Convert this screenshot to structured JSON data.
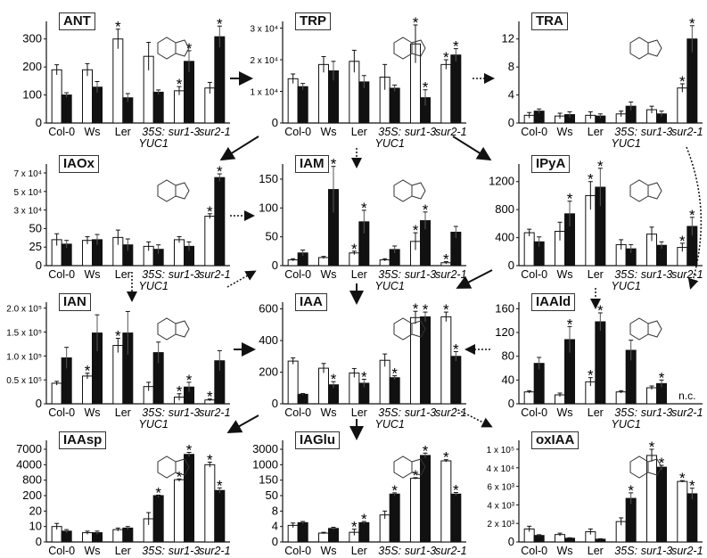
{
  "chart_data": [
    {
      "id": "ANT",
      "title": "ANT",
      "type": "bar",
      "categories": [
        "Col-0",
        "Ws",
        "Ler",
        "35S:",
        "sur1-3",
        "sur2-1"
      ],
      "category_sublabels": [
        "",
        "",
        "",
        "YUC1",
        "",
        ""
      ],
      "ticks": [
        0,
        100,
        200,
        300
      ],
      "tick_labels": [
        "0",
        "100",
        "200",
        "300"
      ],
      "ylim": [
        0,
        350
      ],
      "broken": false,
      "series": [
        {
          "color": "#ffffff",
          "values": [
            190,
            190,
            300,
            238,
            115,
            125
          ],
          "errors": [
            18,
            22,
            35,
            50,
            15,
            20
          ],
          "significant": [
            0,
            0,
            1,
            0,
            1,
            0
          ]
        },
        {
          "color": "#111111",
          "values": [
            100,
            128,
            90,
            110,
            220,
            308
          ],
          "errors": [
            8,
            20,
            15,
            8,
            38,
            38
          ],
          "significant": [
            0,
            0,
            0,
            0,
            1,
            1
          ]
        }
      ]
    },
    {
      "id": "TRP",
      "title": "TRP",
      "type": "bar",
      "categories": [
        "Col-0",
        "Ws",
        "Ler",
        "35S:",
        "sur1-3",
        "sur2-1"
      ],
      "category_sublabels": [
        "",
        "",
        "",
        "YUC1",
        "",
        ""
      ],
      "ticks": [
        0,
        10000,
        20000,
        30000
      ],
      "tick_labels": [
        "0",
        "1 x 10⁴",
        "2 x 10⁴",
        "3 x 10⁴"
      ],
      "ylim": [
        0,
        31000
      ],
      "broken": false,
      "series": [
        {
          "color": "#ffffff",
          "values": [
            14000,
            18500,
            19500,
            14500,
            25000,
            18500
          ],
          "errors": [
            1500,
            2500,
            3500,
            4000,
            6000,
            1500
          ],
          "significant": [
            0,
            0,
            0,
            0,
            1,
            1
          ]
        },
        {
          "color": "#111111",
          "values": [
            11500,
            16500,
            13000,
            11000,
            8000,
            21500
          ],
          "errors": [
            1000,
            3000,
            2000,
            1000,
            2500,
            2000
          ],
          "significant": [
            0,
            0,
            0,
            0,
            1,
            1
          ]
        }
      ]
    },
    {
      "id": "TRA",
      "title": "TRA",
      "type": "bar",
      "categories": [
        "Col-0",
        "Ws",
        "Ler",
        "35S:",
        "sur1-3",
        "sur2-1"
      ],
      "category_sublabels": [
        "",
        "",
        "",
        "YUC1",
        "",
        ""
      ],
      "ticks": [
        0,
        4,
        8,
        12
      ],
      "tick_labels": [
        "0",
        "4",
        "8",
        "12"
      ],
      "ylim": [
        0,
        14
      ],
      "broken": false,
      "series": [
        {
          "color": "#ffffff",
          "values": [
            1.1,
            1.0,
            1.1,
            1.3,
            1.9,
            5.0
          ],
          "errors": [
            0.4,
            0.4,
            0.5,
            0.4,
            0.5,
            0.6
          ],
          "significant": [
            0,
            0,
            0,
            0,
            0,
            1
          ]
        },
        {
          "color": "#111111",
          "values": [
            1.7,
            1.2,
            1.0,
            2.4,
            1.3,
            12
          ],
          "errors": [
            0.3,
            0.4,
            0.3,
            0.6,
            0.4,
            1.9
          ],
          "significant": [
            0,
            0,
            0,
            0,
            0,
            1
          ]
        }
      ]
    },
    {
      "id": "IAOx",
      "title": "IAOx",
      "type": "bar",
      "categories": [
        "Col-0",
        "Ws",
        "Ler",
        "35S:",
        "sur1-3",
        "sur2-1"
      ],
      "category_sublabels": [
        "",
        "",
        "",
        "YUC1",
        "",
        ""
      ],
      "ticks": [
        0,
        25,
        50,
        30000,
        50000,
        70000
      ],
      "tick_labels": [
        "0",
        "25",
        "50",
        "3 x 10⁴",
        "5 x 10⁴",
        "7 x 10⁴"
      ],
      "broken": true,
      "series": [
        {
          "color": "#ffffff",
          "values": [
            35,
            34,
            38,
            26,
            35,
            20000
          ],
          "errors": [
            8,
            5,
            10,
            6,
            4,
            4000
          ],
          "significant": [
            0,
            0,
            0,
            0,
            0,
            1
          ]
        },
        {
          "color": "#111111",
          "values": [
            29,
            35,
            28,
            22,
            26,
            65000
          ],
          "errors": [
            5,
            7,
            8,
            6,
            6,
            4000
          ],
          "significant": [
            0,
            0,
            0,
            0,
            0,
            1
          ]
        }
      ]
    },
    {
      "id": "IAM",
      "title": "IAM",
      "type": "bar",
      "categories": [
        "Col-0",
        "Ws",
        "Ler",
        "35S:",
        "sur1-3",
        "sur2-1"
      ],
      "category_sublabels": [
        "",
        "",
        "",
        "YUC1",
        "",
        ""
      ],
      "ticks": [
        0,
        50,
        100,
        150
      ],
      "tick_labels": [
        "0",
        "50",
        "100",
        "150"
      ],
      "ylim": [
        0,
        170
      ],
      "broken": false,
      "series": [
        {
          "color": "#ffffff",
          "values": [
            10,
            14,
            22,
            10,
            42,
            5
          ],
          "errors": [
            2,
            2,
            3,
            2,
            15,
            2
          ],
          "significant": [
            0,
            0,
            1,
            0,
            1,
            1
          ]
        },
        {
          "color": "#111111",
          "values": [
            22,
            132,
            76,
            28,
            78,
            58
          ],
          "errors": [
            5,
            40,
            20,
            6,
            15,
            10
          ],
          "significant": [
            0,
            1,
            1,
            0,
            1,
            0
          ]
        }
      ]
    },
    {
      "id": "IPyA",
      "title": "IPyA",
      "type": "bar",
      "categories": [
        "Col-0",
        "Ws",
        "Ler",
        "35S:",
        "sur1-3",
        "sur2-1"
      ],
      "category_sublabels": [
        "",
        "",
        "",
        "YUC1",
        "",
        ""
      ],
      "ticks": [
        0,
        400,
        800,
        1200
      ],
      "tick_labels": [
        "0",
        "400",
        "800",
        "1200"
      ],
      "ylim": [
        0,
        1400
      ],
      "broken": false,
      "series": [
        {
          "color": "#ffffff",
          "values": [
            470,
            490,
            1000,
            300,
            450,
            260
          ],
          "errors": [
            50,
            130,
            200,
            70,
            100,
            60
          ],
          "significant": [
            0,
            0,
            1,
            0,
            0,
            1
          ]
        },
        {
          "color": "#111111",
          "values": [
            340,
            740,
            1120,
            240,
            290,
            560
          ],
          "errors": [
            70,
            180,
            270,
            60,
            50,
            130
          ],
          "significant": [
            0,
            1,
            1,
            0,
            0,
            1
          ]
        }
      ]
    },
    {
      "id": "IAN",
      "title": "IAN",
      "type": "bar",
      "categories": [
        "Col-0",
        "Ws",
        "Ler",
        "35S:",
        "sur1-3",
        "sur2-1"
      ],
      "category_sublabels": [
        "",
        "",
        "",
        "YUC1",
        "",
        ""
      ],
      "ticks": [
        0,
        50000,
        100000,
        150000,
        200000
      ],
      "tick_labels": [
        "0",
        "0.5 x 10⁵",
        "1.0 x 10⁵",
        "1.5 x 10⁵",
        "2.0 x 10⁵"
      ],
      "ylim": [
        0,
        205000
      ],
      "broken": false,
      "series": [
        {
          "color": "#ffffff",
          "values": [
            43000,
            58000,
            122000,
            36000,
            14000,
            8000
          ],
          "errors": [
            4000,
            6000,
            15000,
            9000,
            7000,
            2000
          ],
          "significant": [
            0,
            1,
            1,
            0,
            1,
            1
          ]
        },
        {
          "color": "#111111",
          "values": [
            96000,
            148000,
            148000,
            107000,
            35000,
            90000
          ],
          "errors": [
            22000,
            38000,
            45000,
            22000,
            10000,
            21000
          ],
          "significant": [
            0,
            0,
            0,
            0,
            1,
            0
          ]
        }
      ]
    },
    {
      "id": "IAA",
      "title": "IAA",
      "type": "bar",
      "categories": [
        "Col-0",
        "Ws",
        "Ler",
        "35S:",
        "sur1-3",
        "sur2-1"
      ],
      "category_sublabels": [
        "",
        "",
        "",
        "YUC1",
        "",
        ""
      ],
      "ticks": [
        0,
        200,
        400,
        600
      ],
      "tick_labels": [
        "0",
        "200",
        "400",
        "600"
      ],
      "ylim": [
        0,
        620
      ],
      "broken": false,
      "series": [
        {
          "color": "#ffffff",
          "values": [
            270,
            225,
            195,
            275,
            545,
            550
          ],
          "errors": [
            20,
            30,
            28,
            40,
            40,
            30
          ],
          "significant": [
            0,
            0,
            0,
            0,
            1,
            1
          ]
        },
        {
          "color": "#111111",
          "values": [
            60,
            120,
            130,
            165,
            550,
            300
          ],
          "errors": [
            5,
            20,
            25,
            12,
            30,
            30
          ],
          "significant": [
            0,
            1,
            1,
            1,
            1,
            1
          ]
        }
      ]
    },
    {
      "id": "IAAld",
      "title": "IAAld",
      "type": "bar",
      "categories": [
        "Col-0",
        "Ws",
        "Ler",
        "35S:",
        "sur1-3",
        "sur2-1"
      ],
      "category_sublabels": [
        "",
        "",
        "",
        "YUC1",
        "",
        ""
      ],
      "ticks": [
        0,
        40,
        80,
        120,
        160
      ],
      "tick_labels": [
        "0",
        "40",
        "80",
        "120",
        "160"
      ],
      "ylim": [
        0,
        165
      ],
      "broken": false,
      "annotation": "n.c.",
      "series": [
        {
          "color": "#ffffff",
          "values": [
            20,
            15,
            37,
            20,
            27,
            null
          ],
          "errors": [
            2,
            3,
            7,
            2,
            3,
            0
          ],
          "significant": [
            0,
            0,
            1,
            0,
            0,
            0
          ]
        },
        {
          "color": "#111111",
          "values": [
            68,
            108,
            138,
            90,
            34,
            null
          ],
          "errors": [
            10,
            22,
            15,
            17,
            6,
            0
          ],
          "significant": [
            0,
            1,
            1,
            0,
            1,
            0
          ]
        }
      ]
    },
    {
      "id": "IAAsp",
      "title": "IAAsp",
      "type": "bar",
      "categories": [
        "Col-0",
        "Ws",
        "Ler",
        "35S:",
        "sur1-3",
        "sur2-1"
      ],
      "category_sublabels": [
        "",
        "",
        "",
        "YUC1",
        "",
        ""
      ],
      "ticks": [
        0,
        10,
        20,
        200,
        800,
        4000,
        7000
      ],
      "tick_labels": [
        "0",
        "10",
        "20",
        "200",
        "800",
        "4000",
        "7000"
      ],
      "broken": true,
      "series": [
        {
          "color": "#ffffff",
          "values": [
            10,
            6,
            8,
            15,
            900,
            4000
          ],
          "errors": [
            2,
            1,
            1,
            4,
            150,
            500
          ],
          "significant": [
            0,
            0,
            0,
            0,
            1,
            1
          ]
        },
        {
          "color": "#111111",
          "values": [
            7,
            6,
            9,
            200,
            6000,
            400
          ],
          "errors": [
            1,
            1,
            1,
            20,
            400,
            100
          ],
          "significant": [
            0,
            0,
            0,
            1,
            1,
            1
          ]
        }
      ]
    },
    {
      "id": "IAGlu",
      "title": "IAGlu",
      "type": "bar",
      "categories": [
        "Col-0",
        "Ws",
        "Ler",
        "35S:",
        "sur1-3",
        "sur2-1"
      ],
      "category_sublabels": [
        "",
        "",
        "",
        "YUC1",
        "",
        ""
      ],
      "ticks": [
        0,
        4,
        8,
        50,
        150,
        1000,
        3000
      ],
      "tick_labels": [
        "0",
        "4",
        "8",
        "50",
        "150",
        "1000",
        "3000"
      ],
      "broken": true,
      "series": [
        {
          "color": "#ffffff",
          "values": [
            4.3,
            2.3,
            2.5,
            7,
            250,
            1500
          ],
          "errors": [
            0.6,
            0.2,
            0.8,
            1,
            40,
            150
          ],
          "significant": [
            0,
            0,
            1,
            0,
            1,
            1
          ]
        },
        {
          "color": "#111111",
          "values": [
            5,
            3.5,
            5,
            60,
            2200,
            60
          ],
          "errors": [
            0.3,
            0.3,
            0.3,
            8,
            300,
            10
          ],
          "significant": [
            0,
            0,
            1,
            1,
            1,
            1
          ]
        }
      ]
    },
    {
      "id": "oxIAA",
      "title": "oxIAA",
      "type": "bar",
      "categories": [
        "Col-0",
        "Ws",
        "Ler",
        "35S:",
        "sur1-3",
        "sur2-1"
      ],
      "category_sublabels": [
        "",
        "",
        "",
        "YUC1",
        "",
        ""
      ],
      "ticks": [
        0,
        2000,
        4000,
        6000,
        40000,
        100000
      ],
      "tick_labels": [
        "0",
        "2 x 10³",
        "4 x 10³",
        "6 x 10³",
        "4 x 10⁴",
        "1 x 10⁵"
      ],
      "broken": true,
      "series": [
        {
          "color": "#ffffff",
          "values": [
            1400,
            800,
            1100,
            2200,
            80000,
            15000
          ],
          "errors": [
            300,
            150,
            300,
            400,
            20000,
            1500
          ],
          "significant": [
            0,
            0,
            0,
            0,
            1,
            1
          ]
        },
        {
          "color": "#111111",
          "values": [
            700,
            400,
            300,
            4700,
            42000,
            5200
          ],
          "errors": [
            80,
            50,
            50,
            600,
            6000,
            600
          ],
          "significant": [
            0,
            0,
            0,
            1,
            1,
            1
          ]
        }
      ]
    }
  ],
  "significance_marker": "*"
}
